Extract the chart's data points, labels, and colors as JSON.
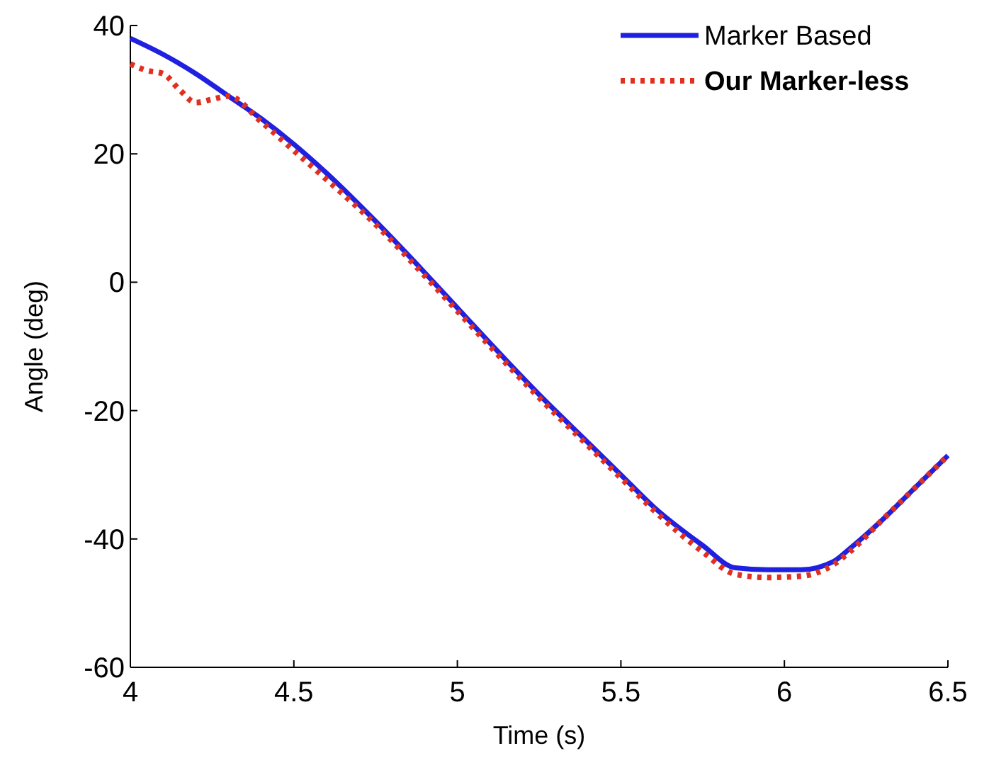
{
  "chart_data": {
    "type": "line",
    "xlabel": "Time (s)",
    "ylabel": "Angle (deg)",
    "xlim": [
      4,
      6.5
    ],
    "xticks": [
      4,
      4.5,
      5,
      5.5,
      6,
      6.5
    ],
    "ylim": [
      -60,
      40
    ],
    "yticks": [
      -60,
      -40,
      -20,
      0,
      20,
      40
    ],
    "grid": false,
    "legend": "top right",
    "series": [
      {
        "name": "Marker Based",
        "color": "#2020e0",
        "line_style": "solid",
        "x": [
          4,
          4.1,
          4.2,
          4.3,
          4.4,
          4.5,
          4.6,
          4.75,
          4.9,
          5,
          5.1,
          5.25,
          5.4,
          5.5,
          5.6,
          5.75,
          5.85,
          5.95,
          6.05,
          6.15,
          6.2,
          6.3,
          6.4,
          6.5
        ],
        "values": [
          38,
          35.5,
          32.5,
          29,
          25.5,
          21.5,
          17,
          9.5,
          1.5,
          -4,
          -9.5,
          -17.5,
          -25,
          -30,
          -35,
          -41,
          -44.5,
          -44.8,
          -44.8,
          -43.5,
          -41.5,
          -37,
          -32,
          -27
        ]
      },
      {
        "name": "Our Marker-less",
        "color": "#e03020",
        "line_style": "dotted",
        "x": [
          4,
          4.05,
          4.1,
          4.15,
          4.2,
          4.25,
          4.3,
          4.4,
          4.5,
          4.6,
          4.75,
          4.9,
          5,
          5.1,
          5.25,
          5.4,
          5.5,
          5.6,
          5.75,
          5.85,
          5.95,
          6.05,
          6.15,
          6.2,
          6.3,
          6.4,
          6.5
        ],
        "values": [
          34,
          33,
          32.5,
          30,
          28,
          28.5,
          29,
          25,
          20.5,
          16,
          9,
          1,
          -4.5,
          -10,
          -18,
          -25.5,
          -30.5,
          -35.5,
          -42,
          -45.5,
          -46,
          -45.8,
          -44,
          -42,
          -37,
          -32,
          -27
        ]
      }
    ]
  }
}
